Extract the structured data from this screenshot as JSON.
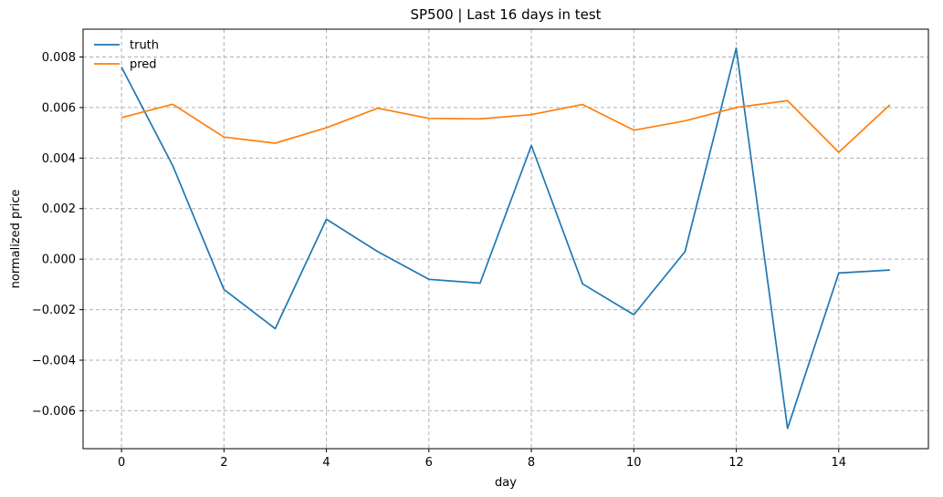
{
  "chart_data": {
    "type": "line",
    "title": "SP500 | Last 16 days in test",
    "xlabel": "day",
    "ylabel": "normalized price",
    "x": [
      0,
      1,
      2,
      3,
      4,
      5,
      6,
      7,
      8,
      9,
      10,
      11,
      12,
      13,
      14,
      15
    ],
    "series": [
      {
        "name": "truth",
        "color": "#1f77b4",
        "values": [
          0.0076,
          0.0037,
          -0.0012,
          -0.00275,
          0.00158,
          0.0003,
          -0.0008,
          -0.00095,
          0.0045,
          -0.00098,
          -0.0022,
          0.0003,
          0.00835,
          -0.0067,
          -0.00055,
          -0.00043
        ]
      },
      {
        "name": "pred",
        "color": "#ff7f0e",
        "values": [
          0.0056,
          0.00613,
          0.00483,
          0.00459,
          0.0052,
          0.00597,
          0.00557,
          0.00555,
          0.00572,
          0.00612,
          0.0051,
          0.00547,
          0.006,
          0.00627,
          0.00423,
          0.00611
        ]
      }
    ],
    "xlim": [
      -0.75,
      15.75
    ],
    "ylim": [
      -0.0075,
      0.0091
    ],
    "xticks": [
      0,
      2,
      4,
      6,
      8,
      10,
      12,
      14
    ],
    "xtick_labels": [
      "0",
      "2",
      "4",
      "6",
      "8",
      "10",
      "12",
      "14"
    ],
    "yticks": [
      -0.006,
      -0.004,
      -0.002,
      0.0,
      0.002,
      0.004,
      0.006,
      0.008
    ],
    "ytick_labels": [
      "−0.006",
      "−0.004",
      "−0.002",
      "0.000",
      "0.002",
      "0.004",
      "0.006",
      "0.008"
    ],
    "grid": true,
    "legend_position": "top-left"
  }
}
